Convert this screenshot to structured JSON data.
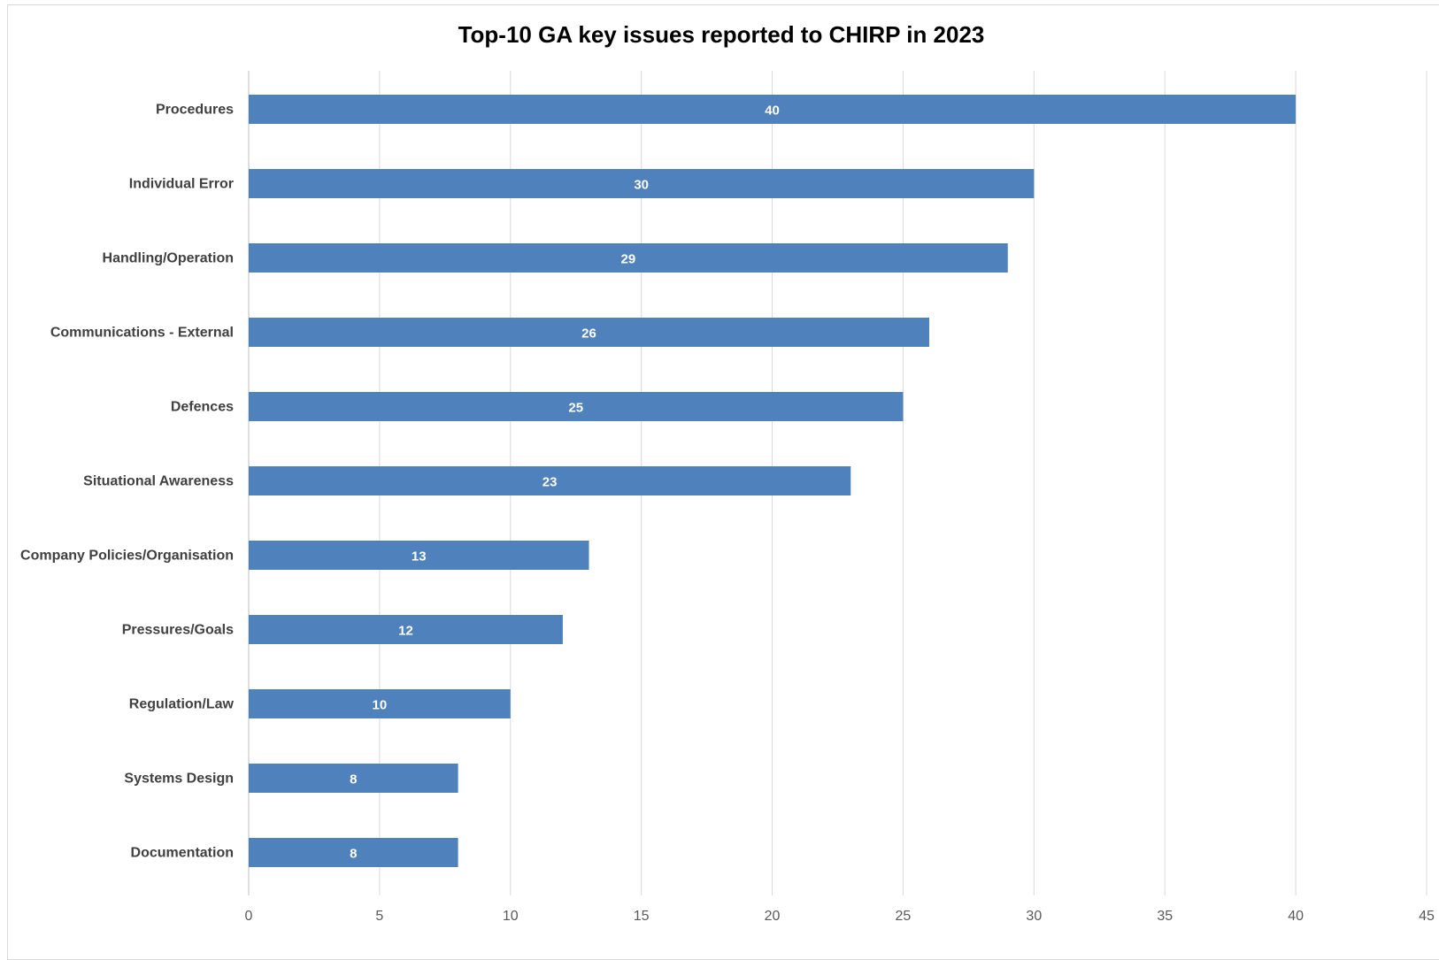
{
  "chart_data": {
    "type": "bar",
    "orientation": "horizontal",
    "title": "Top-10 GA key issues reported to CHIRP in 2023",
    "xlabel": "",
    "ylabel": "",
    "categories": [
      "Procedures",
      "Individual Error",
      "Handling/Operation",
      "Communications - External",
      "Defences",
      "Situational Awareness",
      "Company Policies/Organisation",
      "Pressures/Goals",
      "Regulation/Law",
      "Systems Design",
      "Documentation"
    ],
    "values": [
      40,
      30,
      29,
      26,
      25,
      23,
      13,
      12,
      10,
      8,
      8
    ],
    "xlim": [
      0,
      45
    ],
    "xticks": [
      "0",
      "5",
      "10",
      "15",
      "20",
      "25",
      "30",
      "35",
      "40",
      "45"
    ],
    "grid": "vertical",
    "legend": "none",
    "bar_color": "#4f81bd",
    "data_labels": true
  }
}
